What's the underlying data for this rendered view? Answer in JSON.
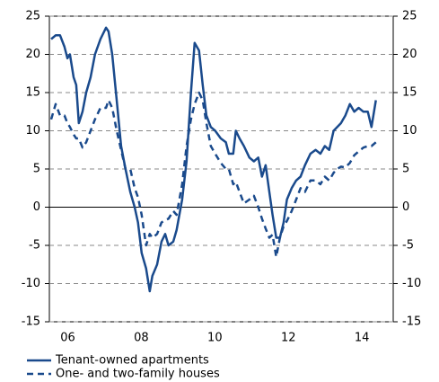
{
  "chart_data": {
    "type": "line",
    "x": [
      2006.05,
      2006.17,
      2006.29,
      2006.41,
      2006.49,
      2006.56,
      2006.66,
      2006.73,
      2006.8,
      2006.9,
      2007.0,
      2007.12,
      2007.24,
      2007.39,
      2007.54,
      2007.61,
      2007.71,
      2007.83,
      2007.95,
      2008.07,
      2008.2,
      2008.32,
      2008.41,
      2008.51,
      2008.63,
      2008.73,
      2008.8,
      2008.93,
      2009.05,
      2009.15,
      2009.24,
      2009.37,
      2009.46,
      2009.61,
      2009.73,
      2009.85,
      2009.95,
      2010.07,
      2010.17,
      2010.27,
      2010.39,
      2010.51,
      2010.66,
      2010.8,
      2010.88,
      2011.0,
      2011.07,
      2011.17,
      2011.29,
      2011.44,
      2011.56,
      2011.68,
      2011.78,
      2011.88,
      2011.98,
      2012.07,
      2012.17,
      2012.27,
      2012.37,
      2012.46,
      2012.59,
      2012.71,
      2012.83,
      2012.95,
      2013.1,
      2013.24,
      2013.37,
      2013.49,
      2013.61,
      2013.73,
      2013.83,
      2013.93,
      2014.05,
      2014.17,
      2014.29,
      2014.41,
      2014.54,
      2014.66,
      2014.76,
      2014.88
    ],
    "series": [
      {
        "name": "Tenant-owned apartments",
        "color": "#1a4a8c",
        "dash": false,
        "values": [
          22,
          22.5,
          22.5,
          21,
          19.5,
          20,
          17,
          16,
          11,
          12.5,
          15,
          17,
          20,
          22,
          23.5,
          23,
          20,
          14,
          8,
          5,
          2,
          0,
          -2,
          -6,
          -8,
          -11,
          -9,
          -7.5,
          -4.5,
          -3.5,
          -5,
          -4.5,
          -3,
          1,
          6,
          15,
          21.5,
          20.5,
          16,
          12,
          10.5,
          10,
          9,
          8.5,
          7,
          7,
          10,
          9,
          8,
          6.5,
          6,
          6.5,
          4,
          5.5,
          2,
          -1,
          -4,
          -4,
          -2,
          1,
          2.5,
          3.5,
          4,
          5.5,
          7,
          7.5,
          7,
          8,
          7.5,
          10,
          10.5,
          11,
          12,
          13.5,
          12.5,
          13,
          12.5,
          12.5,
          10.5,
          14
        ]
      },
      {
        "name": "One- and two-family houses",
        "color": "#1a4a8c",
        "dash": true,
        "values": [
          11.5,
          13.5,
          12,
          12,
          11,
          10.5,
          9.5,
          9,
          9,
          7.8,
          8.5,
          10,
          11.5,
          13,
          13,
          14,
          13,
          10,
          7.5,
          5,
          5,
          2.5,
          1.3,
          -1,
          -5,
          -3.5,
          -4,
          -3.5,
          -2,
          -1.7,
          -1.5,
          -0.5,
          -1,
          3,
          8,
          11.5,
          13.5,
          15,
          14,
          11,
          8,
          7,
          5.8,
          5,
          5,
          3,
          3.3,
          2,
          0.5,
          1,
          1.5,
          0,
          -1.5,
          -2.8,
          -4,
          -3.6,
          -6.5,
          -4,
          -2.5,
          -1.8,
          -0.5,
          1,
          2.5,
          2,
          3.5,
          3.5,
          3,
          4,
          3.5,
          4.5,
          5,
          5.3,
          5.2,
          5.8,
          6.8,
          7.3,
          7.8,
          8,
          8,
          8.5
        ]
      }
    ],
    "xlim": [
      2006,
      2015.35
    ],
    "xticks": [
      {
        "value": 2006.5,
        "label": "06"
      },
      {
        "value": 2008.5,
        "label": "08"
      },
      {
        "value": 2010.5,
        "label": "10"
      },
      {
        "value": 2012.5,
        "label": "12"
      },
      {
        "value": 2014.5,
        "label": "14"
      }
    ],
    "ylim": [
      -15,
      25
    ],
    "yticks": [
      -15,
      -10,
      -5,
      0,
      5,
      10,
      15,
      20,
      25
    ],
    "y2lim": [
      -15,
      25
    ],
    "y2ticks": [
      -15,
      -10,
      -5,
      0,
      5,
      10,
      15,
      20,
      25
    ],
    "grid": true
  }
}
